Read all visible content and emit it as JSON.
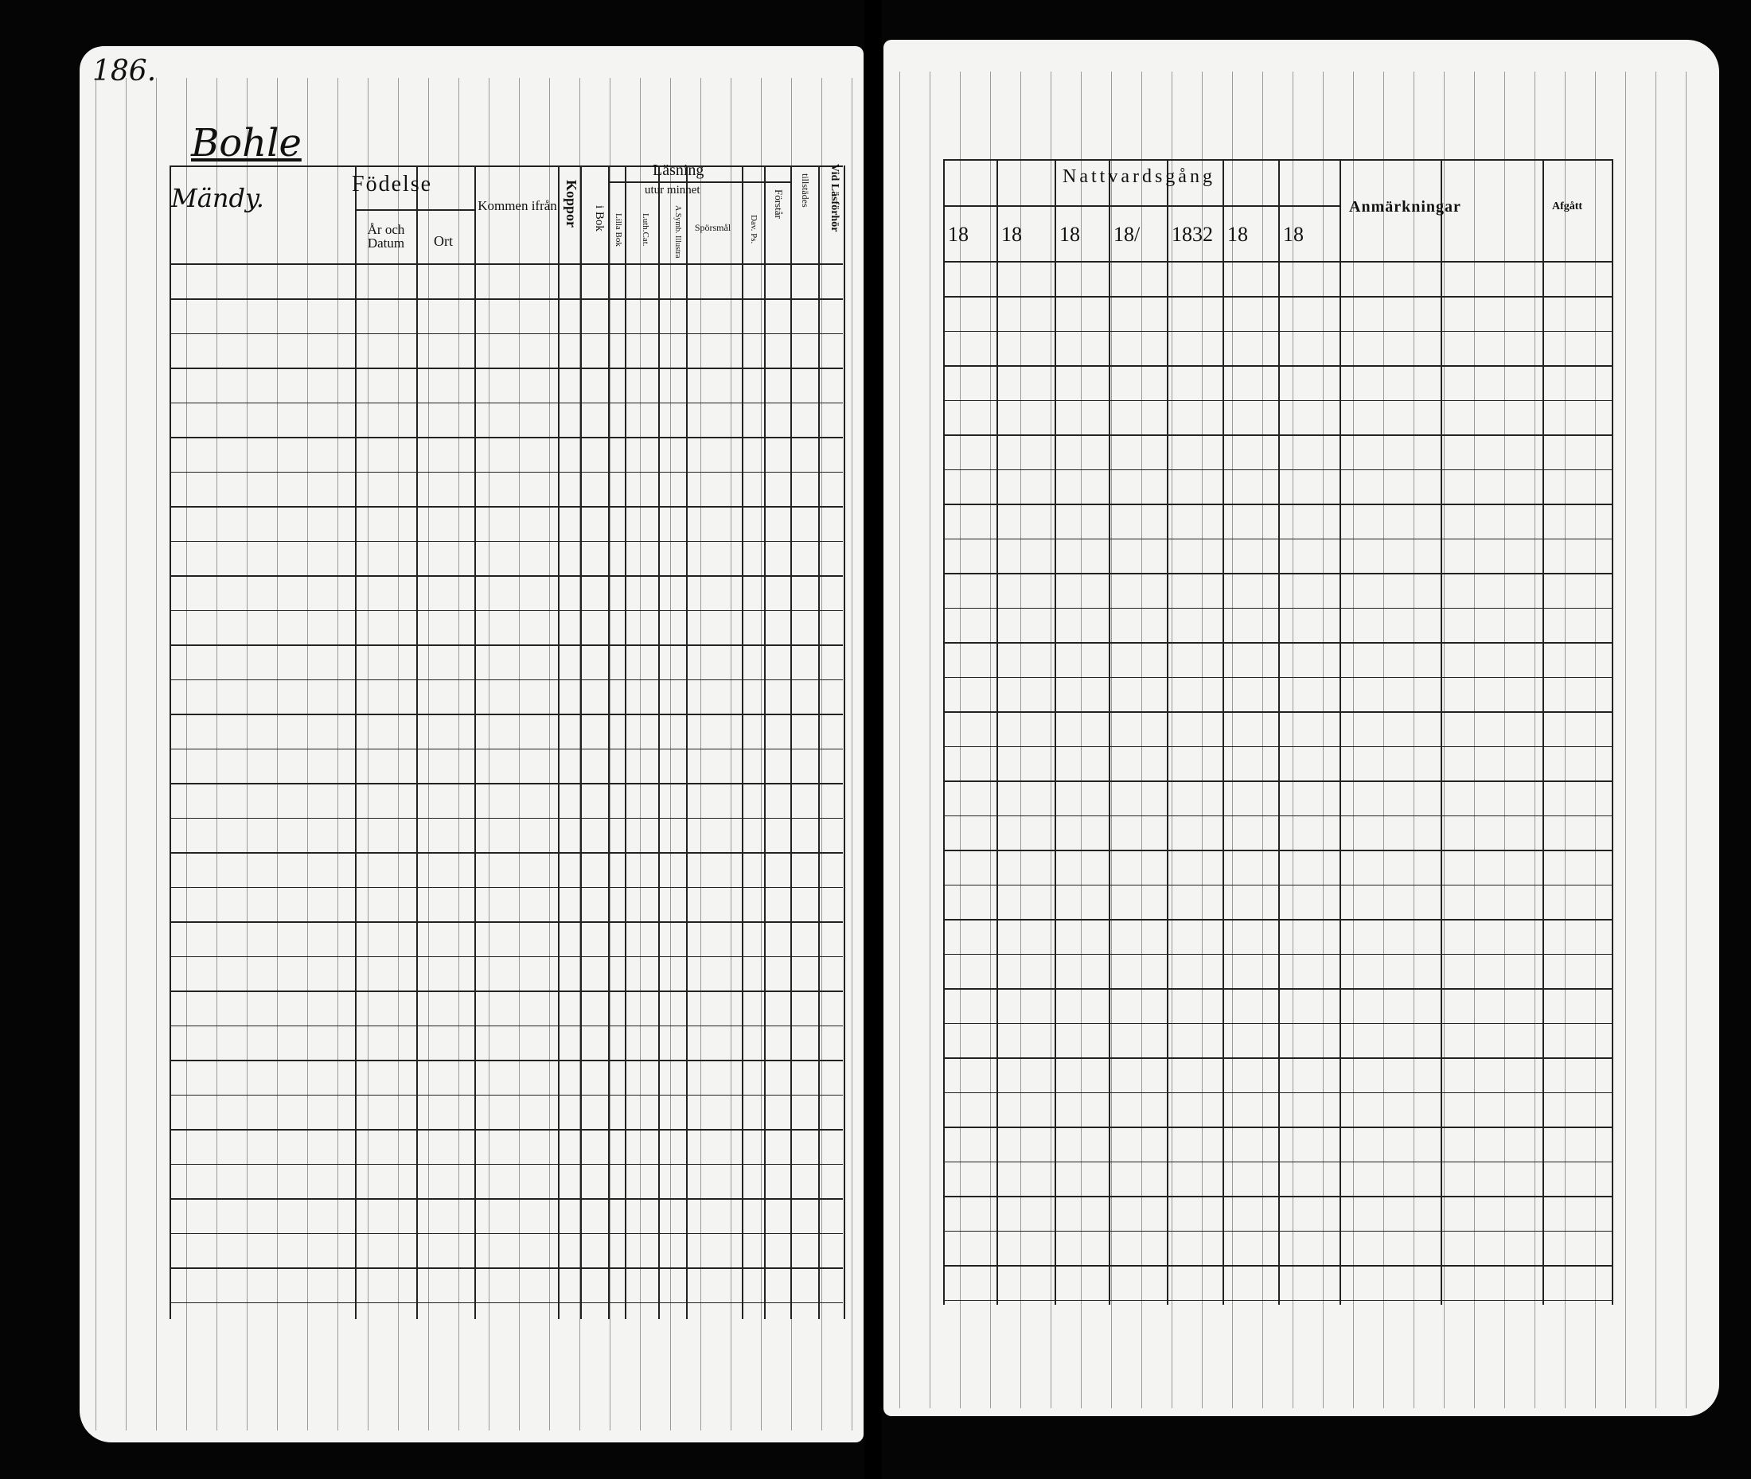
{
  "left_page": {
    "page_number": "186.",
    "village": "Bohle",
    "header": {
      "name_col": "Mändy.",
      "fodelse": "Födelse",
      "ar_och_datum": "År och Datum",
      "ort": "Ort",
      "kommen_ifran": "Kommen ifrån",
      "koppor": "Koppor",
      "lasning": "Läsning",
      "utur_minnet": "utur minnet",
      "i_bok": "i Bok",
      "lilla_boken": "Lilla Bok",
      "luth_cat": "Luth.Cat.",
      "asymb_bok": "A.Symb. Illustra",
      "sporsmal": "Spörsmål",
      "dav_ps": "Dav. Ps.",
      "forstar": "Förstår",
      "tillstades": "tillstädes",
      "vid_lasforhor": "Vid Läsförhör"
    }
  },
  "right_page": {
    "header": {
      "nattvardsgang": "Nattvardsgång",
      "years": [
        "18",
        "18",
        "18",
        "18/",
        "1832",
        "18",
        "18"
      ],
      "anmarkningar": "Anmärkningar",
      "afgatt": "Afgått"
    }
  }
}
